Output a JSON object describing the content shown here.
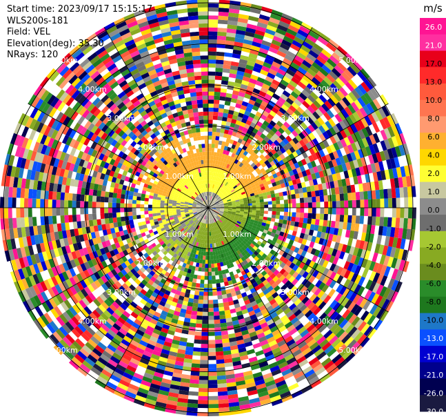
{
  "header": {
    "start_time": "Start time: 2023/09/17 15:15:17",
    "site": "WLS200s-181",
    "field": "Field: VEL",
    "elevation": "Elevation(deg): 35.30",
    "nrays": "NRays: 120"
  },
  "chart_data": {
    "type": "ppi-polar",
    "field": "VEL",
    "units": "m/s",
    "nrays": 120,
    "elevation_deg": 35.3,
    "range_rings_km": [
      1.0,
      2.0,
      3.0,
      4.0,
      5.0
    ],
    "ring_labels": [
      "1.00km",
      "2.00km",
      "3.00km",
      "4.00km",
      "5.00km"
    ],
    "colorbar": {
      "tick_labels": [
        "26.0",
        "21.0",
        "17.0",
        "13.0",
        "10.0",
        "8.0",
        "6.0",
        "4.0",
        "2.0",
        "1.0",
        "0.0",
        "-1.0",
        "-2.0",
        "-4.0",
        "-6.0",
        "-8.0",
        "-10.0",
        "-13.0",
        "-17.0",
        "-21.0",
        "-26.0",
        "-30.0"
      ],
      "colors": [
        "#ff1493",
        "#ff2fa0",
        "#e8001a",
        "#ff2a2a",
        "#ff5a3c",
        "#ff7550",
        "#ff9a70",
        "#ffb030",
        "#ffd700",
        "#ffff33",
        "#c8c8a0",
        "#8c8c8c",
        "#6e6e6e",
        "#a6c832",
        "#88aa22",
        "#6a8c1e",
        "#2a8c2a",
        "#1e781e",
        "#1e78c8",
        "#0a50ff",
        "#0000d2",
        "#00008c",
        "#000050",
        "#1a1a40"
      ]
    },
    "near_field": "outbound (warm colors) toward west/north, inbound (green) toward south-east; noise beyond ~1.4 km"
  },
  "colors": {
    "ring_color": "#000000",
    "spoke_color": "#000000"
  }
}
